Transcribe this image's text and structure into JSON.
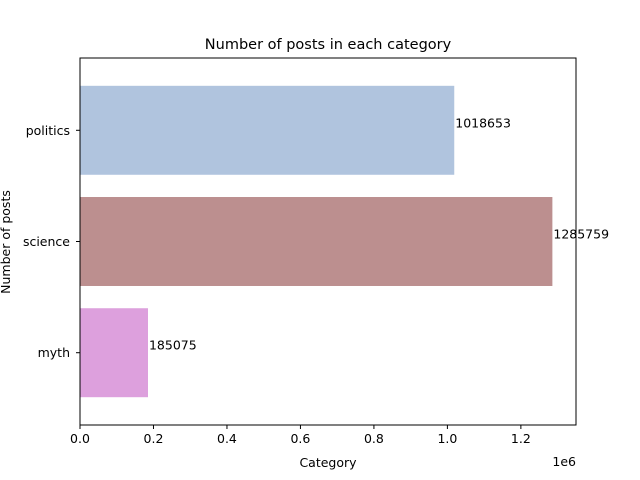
{
  "chart_data": {
    "type": "bar",
    "orientation": "horizontal",
    "title": "Number of posts in each category",
    "xlabel": "Category",
    "ylabel": "Number of posts",
    "categories": [
      "politics",
      "science",
      "myth"
    ],
    "values": [
      1018653,
      1285759,
      185075
    ],
    "data_labels": [
      "1018653",
      "1285759",
      "185075"
    ],
    "bar_colors": [
      "#b0c4de",
      "#bc8f8f",
      "#dda0dd"
    ],
    "xlim": [
      0,
      1350038
    ],
    "x_ticks": [
      0,
      200000,
      400000,
      600000,
      800000,
      1000000,
      1200000
    ],
    "x_tick_labels": [
      "0.0",
      "0.2",
      "0.4",
      "0.6",
      "0.8",
      "1.0",
      "1.2"
    ],
    "x_scale_label": "1e6",
    "grid": false,
    "legend": "none"
  }
}
